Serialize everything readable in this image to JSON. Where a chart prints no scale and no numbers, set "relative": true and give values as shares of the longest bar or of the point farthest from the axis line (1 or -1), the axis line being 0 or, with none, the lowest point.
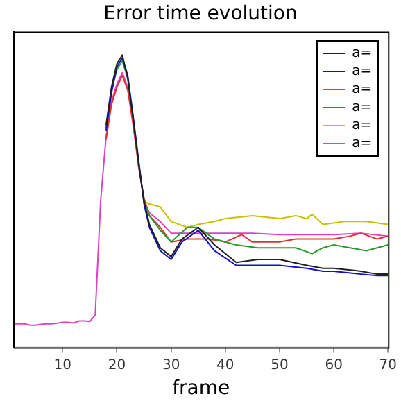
{
  "chart_data": {
    "type": "line",
    "title": "Error time evolution",
    "xlabel": "frame",
    "relative": true,
    "xlim": [
      1,
      70
    ],
    "xticks": [
      10,
      20,
      30,
      40,
      50,
      60,
      70
    ],
    "grid": false,
    "legend": "top right",
    "marker": "none",
    "line_style": "solid",
    "series": [
      {
        "name": "a=",
        "color": "#202020",
        "x": [
          18,
          19,
          20,
          21,
          22,
          23,
          24,
          25,
          26,
          28,
          30,
          32,
          35,
          38,
          42,
          46,
          50,
          55,
          58,
          60,
          65,
          68,
          70
        ],
        "values": [
          0.76,
          0.89,
          0.97,
          1.0,
          0.92,
          0.78,
          0.63,
          0.5,
          0.42,
          0.34,
          0.31,
          0.37,
          0.41,
          0.35,
          0.29,
          0.3,
          0.3,
          0.28,
          0.27,
          0.27,
          0.26,
          0.25,
          0.25
        ]
      },
      {
        "name": "a=",
        "color": "#1010c0",
        "x": [
          18,
          19,
          20,
          21,
          22,
          23,
          24,
          25,
          26,
          28,
          30,
          32,
          35,
          38,
          42,
          46,
          50,
          55,
          58,
          60,
          65,
          68,
          70
        ],
        "values": [
          0.74,
          0.87,
          0.96,
          0.99,
          0.93,
          0.79,
          0.64,
          0.49,
          0.41,
          0.33,
          0.3,
          0.36,
          0.4,
          0.33,
          0.28,
          0.28,
          0.28,
          0.27,
          0.26,
          0.26,
          0.25,
          0.245,
          0.245
        ]
      },
      {
        "name": "a=",
        "color": "#2a9a2a",
        "x": [
          18,
          19,
          20,
          21,
          22,
          23,
          24,
          25,
          26,
          28,
          30,
          33,
          35,
          38,
          42,
          46,
          50,
          53,
          56,
          58,
          60,
          63,
          66,
          70
        ],
        "values": [
          0.75,
          0.88,
          0.95,
          0.98,
          0.92,
          0.78,
          0.63,
          0.5,
          0.45,
          0.4,
          0.36,
          0.41,
          0.41,
          0.37,
          0.35,
          0.34,
          0.34,
          0.34,
          0.32,
          0.34,
          0.35,
          0.34,
          0.33,
          0.35
        ]
      },
      {
        "name": "a=",
        "color": "#e03030",
        "x": [
          18,
          19,
          20,
          21,
          22,
          23,
          24,
          25,
          26,
          28,
          30,
          33,
          37,
          40,
          43,
          45,
          50,
          53,
          56,
          60,
          63,
          65,
          68,
          70
        ],
        "values": [
          0.71,
          0.83,
          0.89,
          0.93,
          0.88,
          0.76,
          0.62,
          0.51,
          0.45,
          0.41,
          0.36,
          0.37,
          0.37,
          0.36,
          0.385,
          0.36,
          0.36,
          0.37,
          0.37,
          0.37,
          0.38,
          0.39,
          0.37,
          0.38
        ]
      },
      {
        "name": "a=",
        "color": "#c8c000",
        "x": [
          24,
          25,
          26,
          28,
          30,
          33,
          35,
          38,
          40,
          45,
          50,
          53,
          55,
          56,
          58,
          62,
          66,
          70
        ],
        "values": [
          0.63,
          0.5,
          0.49,
          0.48,
          0.43,
          0.41,
          0.42,
          0.43,
          0.44,
          0.45,
          0.44,
          0.45,
          0.44,
          0.455,
          0.42,
          0.43,
          0.43,
          0.42
        ]
      },
      {
        "name": "a=",
        "color": "#e040c0",
        "x": [
          1,
          2,
          3,
          4,
          5,
          6,
          7,
          8,
          9,
          10,
          11,
          12,
          13,
          14,
          15,
          16,
          17,
          18,
          19,
          20,
          21,
          22,
          23,
          24,
          25,
          26,
          28,
          30,
          35,
          40,
          45,
          50,
          55,
          60,
          65,
          70
        ],
        "values": [
          0.08,
          0.08,
          0.08,
          0.075,
          0.075,
          0.078,
          0.08,
          0.08,
          0.082,
          0.085,
          0.085,
          0.083,
          0.09,
          0.09,
          0.088,
          0.11,
          0.5,
          0.72,
          0.84,
          0.9,
          0.94,
          0.89,
          0.77,
          0.62,
          0.5,
          0.46,
          0.43,
          0.39,
          0.39,
          0.39,
          0.39,
          0.385,
          0.385,
          0.385,
          0.39,
          0.38
        ]
      }
    ]
  }
}
